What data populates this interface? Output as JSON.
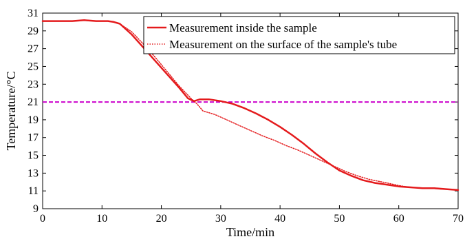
{
  "chart_data": {
    "type": "line",
    "xlabel": "Time/min",
    "ylabel": "Temperature/°C",
    "xlim": [
      0,
      70
    ],
    "ylim": [
      9,
      31
    ],
    "x_ticks": [
      0,
      10,
      20,
      30,
      40,
      50,
      60,
      70
    ],
    "y_ticks": [
      9,
      11,
      13,
      15,
      17,
      19,
      21,
      23,
      25,
      27,
      29,
      31
    ],
    "grid": false,
    "legend_position": "top-right",
    "reference_line": {
      "y": 21,
      "color": "#cc00cc",
      "style": "dashed"
    },
    "series": [
      {
        "name": "Measurement inside the sample",
        "color": "#e41a1c",
        "style": "solid",
        "x": [
          0,
          5,
          7,
          9,
          11,
          12,
          13,
          15,
          17,
          19,
          21,
          23,
          24.5,
          25.5,
          26.5,
          28,
          30,
          32,
          34,
          36,
          38,
          40,
          42,
          44,
          46,
          48,
          50,
          52,
          54,
          56,
          58,
          60,
          62,
          64,
          66,
          68,
          70
        ],
        "y": [
          30.1,
          30.1,
          30.2,
          30.1,
          30.1,
          30.0,
          29.8,
          28.6,
          27.1,
          25.6,
          24.1,
          22.6,
          21.4,
          21.1,
          21.3,
          21.3,
          21.1,
          20.8,
          20.3,
          19.7,
          19.0,
          18.2,
          17.3,
          16.3,
          15.2,
          14.2,
          13.3,
          12.7,
          12.2,
          11.9,
          11.7,
          11.5,
          11.4,
          11.3,
          11.3,
          11.2,
          11.1
        ]
      },
      {
        "name": "Measurement on the surface of the sample's tube",
        "color": "#e41a1c",
        "style": "dotted",
        "x": [
          0,
          5,
          7,
          9,
          11,
          12,
          13,
          15,
          17,
          19,
          21,
          23,
          25,
          26,
          27,
          29,
          31,
          33,
          35,
          37,
          39,
          41,
          43,
          45,
          47,
          49,
          51,
          53,
          55,
          58,
          60,
          62,
          65,
          70
        ],
        "y": [
          30.1,
          30.1,
          30.2,
          30.1,
          30.1,
          30.0,
          29.8,
          28.9,
          27.5,
          26.0,
          24.4,
          22.8,
          21.4,
          20.8,
          20.0,
          19.6,
          19.0,
          18.4,
          17.8,
          17.2,
          16.7,
          16.1,
          15.6,
          15.0,
          14.4,
          13.8,
          13.2,
          12.7,
          12.3,
          11.9,
          11.6,
          11.4,
          11.3,
          11.1
        ]
      }
    ]
  }
}
